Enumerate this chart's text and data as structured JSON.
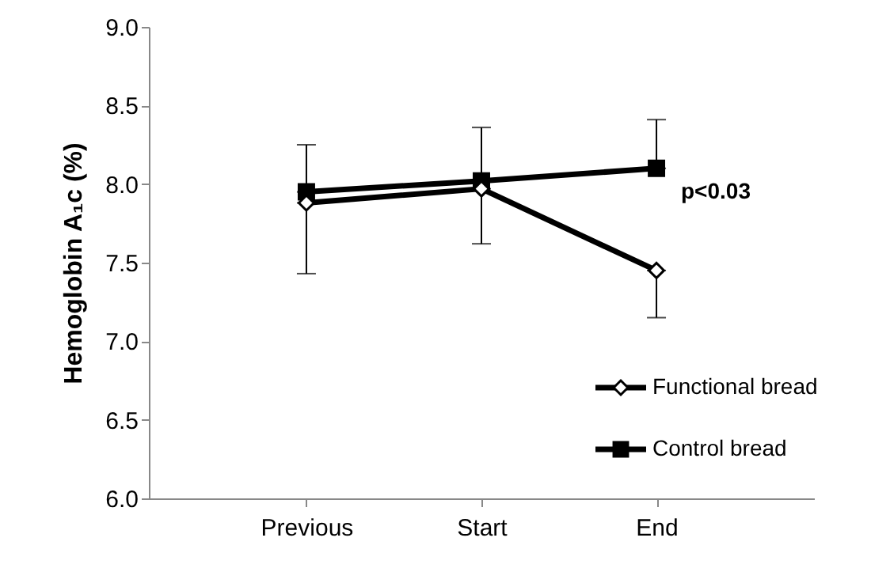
{
  "chart_data": {
    "type": "line",
    "ylabel": "Hemoglobin A₁c (%)",
    "categories": [
      "Previous",
      "Start",
      "End"
    ],
    "series": [
      {
        "name": "Functional bread",
        "color": "#000000",
        "marker": "diamond",
        "values": [
          7.88,
          7.97,
          7.45
        ],
        "errors": [
          [
            7.43,
            7.88
          ],
          [
            7.62,
            7.97
          ],
          [
            7.15,
            7.45
          ]
        ]
      },
      {
        "name": "Control bread",
        "color": "#000000",
        "marker": "square",
        "values": [
          7.95,
          8.02,
          8.1
        ],
        "errors": [
          [
            7.95,
            8.25
          ],
          [
            8.02,
            8.36
          ],
          [
            8.1,
            8.41
          ]
        ]
      }
    ],
    "ylim": [
      6,
      9
    ],
    "yticks": [
      {
        "value": 6,
        "label": "6.0"
      },
      {
        "value": 6.5,
        "label": "6.5"
      },
      {
        "value": 7,
        "label": "7.0"
      },
      {
        "value": 7.5,
        "label": "7.5"
      },
      {
        "value": 8,
        "label": "8.0"
      },
      {
        "value": 8.5,
        "label": "8.5"
      },
      {
        "value": 9,
        "label": "9.0"
      }
    ],
    "annotations": [
      "p<0.03"
    ],
    "grid": false,
    "legend": "bottom right",
    "line_style": "solid"
  }
}
